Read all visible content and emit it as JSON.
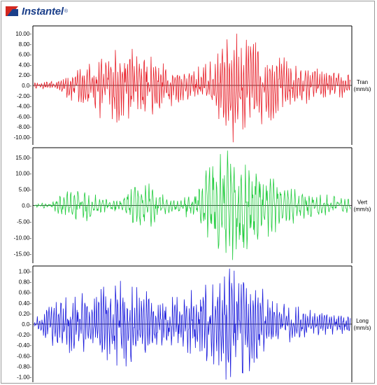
{
  "brand": {
    "name": "Instantel",
    "reg": "®",
    "colors": {
      "logo_red": "#d4271f",
      "logo_blue": "#1b3f8a"
    }
  },
  "chart_data": [
    {
      "type": "line",
      "series": [
        {
          "name": "Tran",
          "color": "#e8202a"
        }
      ],
      "ylabel": "Tran",
      "unit": "(mm/s)",
      "ylim": [
        -11.5,
        11.5
      ],
      "yticks": [
        10,
        8,
        6,
        4,
        2,
        0,
        -2,
        -4,
        -6,
        -8,
        -10
      ],
      "ytick_labels": [
        "10.00-",
        "8.00-",
        "6.00-",
        "4.00-",
        "2.00-",
        "0.0-",
        "-2.00-",
        "-4.00-",
        "-6.00-",
        "-8.00-",
        "-10.00-"
      ],
      "peak_positive": 10.0,
      "peak_negative": -11.0,
      "envelope": [
        {
          "t": 0.0,
          "amp": 0.5
        },
        {
          "t": 0.07,
          "amp": 0.8
        },
        {
          "t": 0.12,
          "amp": 3.0
        },
        {
          "t": 0.2,
          "amp": 5.5
        },
        {
          "t": 0.28,
          "amp": 7.5
        },
        {
          "t": 0.35,
          "amp": 6.5
        },
        {
          "t": 0.42,
          "amp": 4.0
        },
        {
          "t": 0.48,
          "amp": 2.5
        },
        {
          "t": 0.55,
          "amp": 4.5
        },
        {
          "t": 0.62,
          "amp": 8.5
        },
        {
          "t": 0.68,
          "amp": 9.5
        },
        {
          "t": 0.75,
          "amp": 6.0
        },
        {
          "t": 0.85,
          "amp": 3.5
        },
        {
          "t": 1.0,
          "amp": 2.0
        }
      ],
      "grid": false
    },
    {
      "type": "line",
      "series": [
        {
          "name": "Vert",
          "color": "#22cc3e"
        }
      ],
      "ylabel": "Vert",
      "unit": "(mm/s)",
      "ylim": [
        -18,
        18
      ],
      "yticks": [
        15,
        10,
        5,
        0,
        -5,
        -10,
        -15
      ],
      "ytick_labels": [
        "15.00-",
        "10.00-",
        "5.00-",
        "0.0-",
        "-5.00-",
        "-10.00-",
        "-15.00-"
      ],
      "peak_positive": 16.0,
      "peak_negative": -17.0,
      "envelope": [
        {
          "t": 0.0,
          "amp": 0.5
        },
        {
          "t": 0.05,
          "amp": 1.0
        },
        {
          "t": 0.1,
          "amp": 4.0
        },
        {
          "t": 0.15,
          "amp": 5.0
        },
        {
          "t": 0.22,
          "amp": 2.0
        },
        {
          "t": 0.28,
          "amp": 2.0
        },
        {
          "t": 0.33,
          "amp": 7.5
        },
        {
          "t": 0.38,
          "amp": 6.0
        },
        {
          "t": 0.44,
          "amp": 2.0
        },
        {
          "t": 0.5,
          "amp": 4.0
        },
        {
          "t": 0.56,
          "amp": 12.0
        },
        {
          "t": 0.6,
          "amp": 16.5
        },
        {
          "t": 0.66,
          "amp": 14.0
        },
        {
          "t": 0.72,
          "amp": 11.0
        },
        {
          "t": 0.8,
          "amp": 6.0
        },
        {
          "t": 0.9,
          "amp": 3.5
        },
        {
          "t": 1.0,
          "amp": 2.0
        }
      ],
      "grid": false
    },
    {
      "type": "line",
      "series": [
        {
          "name": "Long",
          "color": "#1a1adc"
        }
      ],
      "ylabel": "Long",
      "unit": "(mm/s)",
      "ylim": [
        -1.1,
        1.1
      ],
      "yticks": [
        1.0,
        0.8,
        0.6,
        0.4,
        0.2,
        0,
        -0.2,
        -0.4,
        -0.6,
        -0.8,
        -1.0
      ],
      "ytick_labels": [
        "1.00-",
        "0.80-",
        "0.60-",
        "0.40-",
        "0.20-",
        "0.0-",
        "-0.20-",
        "-0.40-",
        "-0.60-",
        "-0.80-",
        "-1.00-"
      ],
      "peak_positive": 1.05,
      "peak_negative": -1.05,
      "envelope": [
        {
          "t": 0.0,
          "amp": 0.1
        },
        {
          "t": 0.05,
          "amp": 0.35
        },
        {
          "t": 0.12,
          "amp": 0.55
        },
        {
          "t": 0.2,
          "amp": 0.65
        },
        {
          "t": 0.28,
          "amp": 0.8
        },
        {
          "t": 0.34,
          "amp": 0.6
        },
        {
          "t": 0.42,
          "amp": 0.45
        },
        {
          "t": 0.5,
          "amp": 0.6
        },
        {
          "t": 0.57,
          "amp": 0.85
        },
        {
          "t": 0.62,
          "amp": 1.0
        },
        {
          "t": 0.67,
          "amp": 1.0
        },
        {
          "t": 0.72,
          "amp": 0.6
        },
        {
          "t": 0.8,
          "amp": 0.35
        },
        {
          "t": 0.9,
          "amp": 0.2
        },
        {
          "t": 1.0,
          "amp": 0.15
        }
      ],
      "grid": false
    }
  ]
}
